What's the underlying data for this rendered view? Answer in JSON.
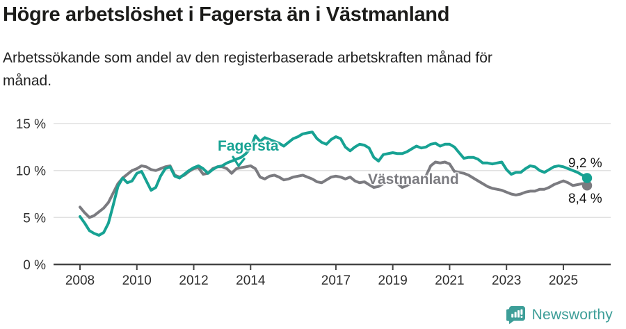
{
  "header": {
    "title": "Högre arbetslöshet i Fagersta än i Västmanland",
    "subtitle": "Arbetssökande som andel av den registerbaserade arbetskraften månad för\nmånad."
  },
  "chart_data": {
    "type": "line",
    "unit": "%",
    "x_start_year": 2008,
    "points_per_year": 6,
    "ylim": [
      0,
      16.5
    ],
    "grid": true,
    "x_ticks": [
      {
        "year": 2008,
        "label": "2008"
      },
      {
        "year": 2010,
        "label": "2010"
      },
      {
        "year": 2012,
        "label": "2012"
      },
      {
        "year": 2014,
        "label": "2014"
      },
      {
        "year": 2017,
        "label": "2017"
      },
      {
        "year": 2019,
        "label": "2019"
      },
      {
        "year": 2021,
        "label": "2021"
      },
      {
        "year": 2023,
        "label": "2023"
      },
      {
        "year": 2025,
        "label": "2025"
      }
    ],
    "y_ticks": [
      {
        "value": 0,
        "label": "0 %"
      },
      {
        "value": 5,
        "label": "5 %"
      },
      {
        "value": 10,
        "label": "10 %"
      },
      {
        "value": 15,
        "label": "15 %"
      }
    ],
    "series": [
      {
        "name": "Fagersta",
        "color": "#17a293",
        "end_label": "9,2 %",
        "values": [
          5.1,
          4.4,
          3.6,
          3.3,
          3.1,
          3.4,
          4.4,
          6.3,
          8.3,
          9.2,
          8.7,
          8.9,
          9.7,
          9.9,
          8.9,
          7.9,
          8.2,
          9.4,
          10.2,
          10.4,
          9.4,
          9.2,
          9.6,
          10.0,
          10.3,
          10.5,
          10.2,
          9.7,
          10.1,
          10.4,
          10.5,
          10.8,
          11.0,
          11.2,
          11.4,
          11.8,
          12.4,
          13.7,
          13.1,
          13.5,
          13.3,
          13.1,
          12.9,
          12.6,
          13.0,
          13.4,
          13.6,
          13.9,
          14.0,
          14.1,
          13.4,
          13.0,
          12.8,
          13.3,
          13.6,
          13.4,
          12.5,
          12.1,
          12.5,
          12.8,
          12.7,
          12.4,
          11.4,
          11.0,
          11.7,
          11.8,
          11.9,
          11.8,
          11.8,
          12.0,
          12.3,
          12.6,
          12.4,
          12.5,
          12.8,
          12.9,
          12.6,
          12.8,
          12.8,
          12.5,
          11.9,
          11.3,
          11.4,
          11.4,
          11.2,
          10.8,
          10.8,
          10.7,
          10.8,
          10.9,
          10.1,
          9.6,
          9.8,
          9.8,
          10.2,
          10.5,
          10.4,
          10.0,
          9.8,
          10.1,
          10.4,
          10.5,
          10.4,
          10.2,
          10.0,
          9.8,
          9.5,
          9.2
        ]
      },
      {
        "name": "Västmanland",
        "color": "#7b7b80",
        "end_label": "8,4 %",
        "values": [
          6.1,
          5.5,
          5.0,
          5.2,
          5.6,
          6.0,
          6.6,
          7.6,
          8.6,
          9.2,
          9.6,
          10.0,
          10.2,
          10.5,
          10.4,
          10.1,
          10.0,
          10.2,
          10.4,
          10.5,
          9.5,
          9.3,
          9.5,
          9.9,
          10.2,
          10.3,
          9.6,
          9.7,
          10.2,
          10.4,
          10.4,
          10.2,
          9.7,
          10.2,
          10.3,
          10.4,
          10.5,
          10.2,
          9.3,
          9.1,
          9.4,
          9.5,
          9.3,
          9.0,
          9.1,
          9.3,
          9.4,
          9.5,
          9.3,
          9.1,
          8.8,
          8.7,
          9.0,
          9.3,
          9.4,
          9.3,
          9.1,
          9.3,
          8.9,
          8.7,
          8.8,
          8.5,
          8.2,
          8.3,
          8.6,
          8.8,
          8.9,
          8.6,
          8.2,
          8.4,
          8.7,
          8.9,
          9.0,
          9.4,
          10.5,
          10.9,
          10.8,
          10.9,
          10.7,
          9.9,
          9.8,
          9.7,
          9.5,
          9.2,
          8.9,
          8.6,
          8.3,
          8.1,
          8.0,
          7.9,
          7.7,
          7.5,
          7.4,
          7.5,
          7.7,
          7.8,
          7.8,
          8.0,
          8.0,
          8.2,
          8.5,
          8.7,
          8.9,
          8.7,
          8.4,
          8.5,
          8.6,
          8.4
        ]
      }
    ]
  },
  "footer": {
    "brand": "Newsworthy",
    "brand_color": "#3d9e98",
    "logo_icon": "newsworthy-chart-bubble-icon"
  }
}
